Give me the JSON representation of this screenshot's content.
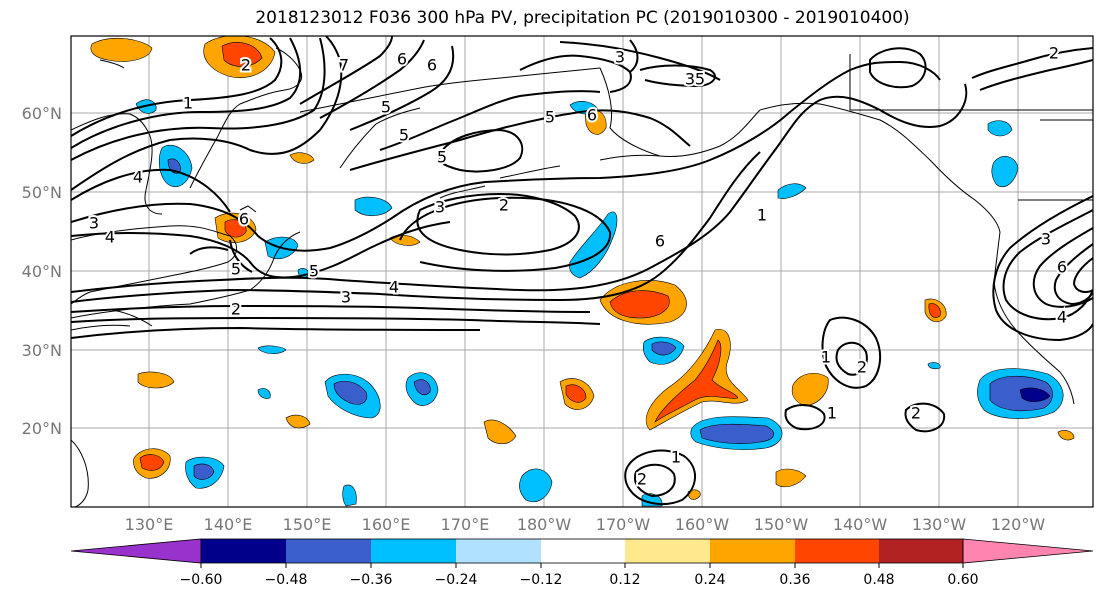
{
  "title": "2018123012 F036 300 hPa PV, precipitation PC (2019010300 - 2019010400)",
  "lat_labels": [
    "60°N",
    "50°N",
    "40°N",
    "30°N",
    "20°N"
  ],
  "lon_labels": [
    "130°E",
    "140°E",
    "150°E",
    "160°E",
    "170°E",
    "180°W",
    "170°W",
    "160°W",
    "150°W",
    "140°W",
    "130°W",
    "120°W"
  ],
  "colorbar": {
    "ticks": [
      "−0.60",
      "−0.48",
      "−0.36",
      "−0.24",
      "−0.12",
      "0.12",
      "0.24",
      "0.36",
      "0.48",
      "0.60"
    ],
    "colors": [
      "#9932cc",
      "#00008b",
      "#3a5fcd",
      "#00bfff",
      "#b0e2ff",
      "#ffffff",
      "#ffe98c",
      "#ffa500",
      "#ff4500",
      "#b22222",
      "#ff85b0"
    ]
  },
  "contour_labels": [
    "2",
    "1",
    "4",
    "3",
    "4",
    "6",
    "7",
    "6",
    "5",
    "5",
    "6",
    "5",
    "3",
    "5",
    "6",
    "5",
    "3",
    "2",
    "6",
    "1",
    "3",
    "4",
    "5",
    "5",
    "3",
    "4",
    "2",
    "1",
    "2",
    "1",
    "2",
    "1",
    "2",
    "2",
    "3",
    "6",
    "4"
  ]
}
